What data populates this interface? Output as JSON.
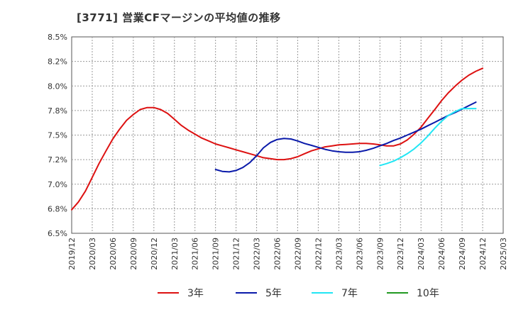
{
  "chart_data": {
    "type": "line",
    "title": "[3771]  営業CFマージンの平均値の推移",
    "xlabel": "",
    "ylabel": "",
    "x_ticks": [
      "2019/12",
      "2020/03",
      "2020/06",
      "2020/09",
      "2020/12",
      "2021/03",
      "2021/06",
      "2021/09",
      "2021/12",
      "2022/03",
      "2022/06",
      "2022/09",
      "2022/12",
      "2023/03",
      "2023/06",
      "2023/09",
      "2023/12",
      "2024/03",
      "2024/06",
      "2024/09",
      "2024/12",
      "2025/03"
    ],
    "ylim": [
      6.5,
      8.5
    ],
    "y_ticks": [
      "6.5%",
      "6.8%",
      "7.0%",
      "7.2%",
      "7.5%",
      "7.8%",
      "8.0%",
      "8.2%",
      "8.5%"
    ],
    "grid": true,
    "legend_position": "bottom",
    "series": [
      {
        "name": "3年",
        "color": "#dd1111",
        "x": [
          0,
          0.33,
          0.67,
          1,
          1.33,
          1.67,
          2,
          2.33,
          2.67,
          3,
          3.33,
          3.67,
          4,
          4.33,
          4.67,
          5,
          5.33,
          5.67,
          6,
          6.33,
          6.67,
          7,
          7.33,
          7.67,
          8,
          8.33,
          8.67,
          9,
          9.33,
          9.67,
          10,
          10.33,
          10.67,
          11,
          11.33,
          11.67,
          12,
          12.33,
          12.67,
          13,
          13.33,
          13.67,
          14,
          14.33,
          14.67,
          15,
          15.33,
          15.67,
          16,
          16.33,
          16.67,
          17,
          17.33,
          17.67,
          18,
          18.33,
          18.67,
          19,
          19.33,
          19.67,
          20
        ],
        "values": [
          6.74,
          6.82,
          6.93,
          7.07,
          7.21,
          7.34,
          7.46,
          7.56,
          7.65,
          7.71,
          7.76,
          7.78,
          7.78,
          7.76,
          7.72,
          7.66,
          7.6,
          7.55,
          7.51,
          7.47,
          7.44,
          7.41,
          7.39,
          7.37,
          7.35,
          7.33,
          7.31,
          7.29,
          7.27,
          7.26,
          7.25,
          7.25,
          7.26,
          7.28,
          7.31,
          7.34,
          7.36,
          7.38,
          7.39,
          7.4,
          7.405,
          7.41,
          7.415,
          7.415,
          7.41,
          7.4,
          7.39,
          7.39,
          7.41,
          7.45,
          7.51,
          7.58,
          7.67,
          7.76,
          7.85,
          7.93,
          8.0,
          8.06,
          8.11,
          8.15,
          8.18
        ]
      },
      {
        "name": "5年",
        "color": "#0a1aaa",
        "x": [
          7,
          7.33,
          7.67,
          8,
          8.33,
          8.67,
          9,
          9.33,
          9.67,
          10,
          10.33,
          10.67,
          11,
          11.33,
          11.67,
          12,
          12.33,
          12.67,
          13,
          13.33,
          13.67,
          14,
          14.33,
          14.67,
          15,
          15.33,
          15.67,
          16,
          16.33,
          16.67,
          17,
          17.33,
          17.67,
          18,
          18.33,
          18.67,
          19,
          19.33,
          19.67
        ],
        "values": [
          7.15,
          7.13,
          7.125,
          7.14,
          7.17,
          7.22,
          7.29,
          7.37,
          7.425,
          7.455,
          7.465,
          7.46,
          7.44,
          7.415,
          7.395,
          7.375,
          7.355,
          7.34,
          7.33,
          7.325,
          7.325,
          7.33,
          7.345,
          7.365,
          7.39,
          7.415,
          7.445,
          7.47,
          7.5,
          7.53,
          7.56,
          7.595,
          7.63,
          7.665,
          7.7,
          7.73,
          7.765,
          7.8,
          7.835
        ]
      },
      {
        "name": "7年",
        "color": "#22e6f4",
        "x": [
          15,
          15.33,
          15.67,
          16,
          16.33,
          16.67,
          17,
          17.33,
          17.67,
          18,
          18.33,
          18.67,
          19,
          19.33,
          19.67
        ],
        "values": [
          7.19,
          7.21,
          7.235,
          7.27,
          7.31,
          7.36,
          7.42,
          7.49,
          7.57,
          7.64,
          7.7,
          7.74,
          7.77,
          7.77,
          7.77
        ]
      },
      {
        "name": "10年",
        "color": "#229922",
        "x": [],
        "values": []
      }
    ]
  }
}
